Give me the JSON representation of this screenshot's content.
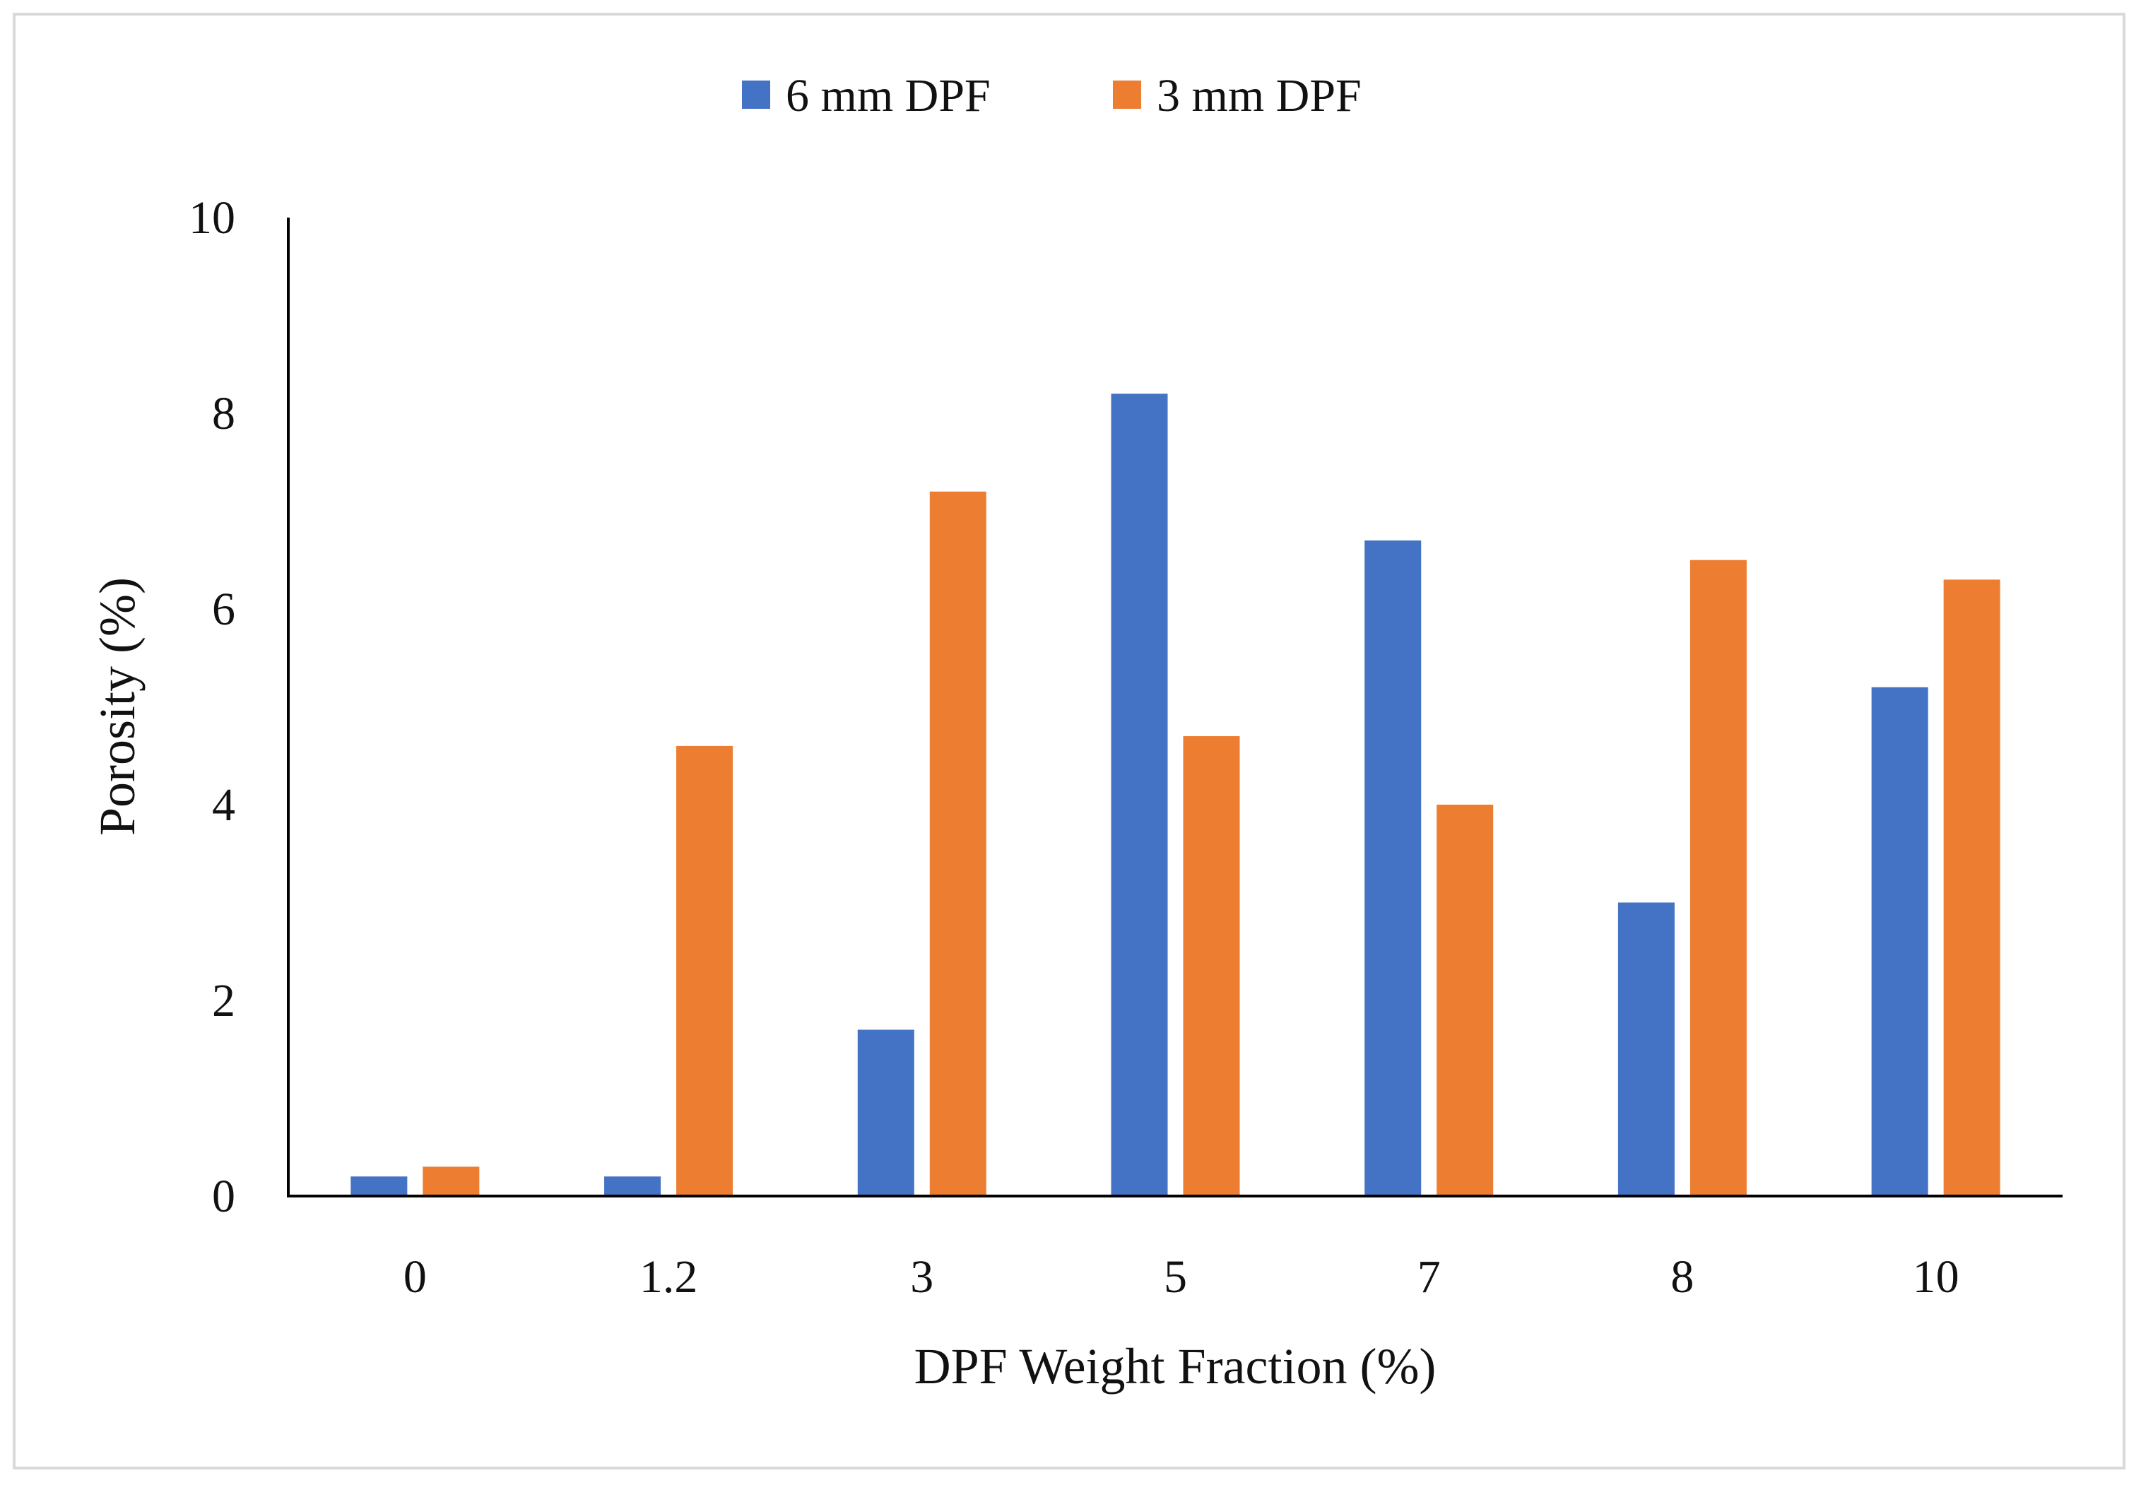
{
  "chart_data": {
    "type": "bar",
    "title": "",
    "xlabel": "DPF Weight Fraction (%)",
    "ylabel": "Porosity (%)",
    "ylim": [
      0,
      10
    ],
    "yticks": [
      "0",
      "2",
      "4",
      "6",
      "8",
      "10"
    ],
    "categories": [
      "0",
      "1.2",
      "3",
      "5",
      "7",
      "8",
      "10"
    ],
    "series": [
      {
        "name": "6 mm DPF",
        "color": "#4472C4",
        "values": [
          0.2,
          0.2,
          1.7,
          8.2,
          6.7,
          3.0,
          5.2
        ]
      },
      {
        "name": "3 mm DPF",
        "color": "#ED7D31",
        "values": [
          0.3,
          4.6,
          7.2,
          4.7,
          4.0,
          6.5,
          6.3
        ]
      }
    ],
    "legend": {
      "placement": "top-center"
    },
    "grid": false
  }
}
